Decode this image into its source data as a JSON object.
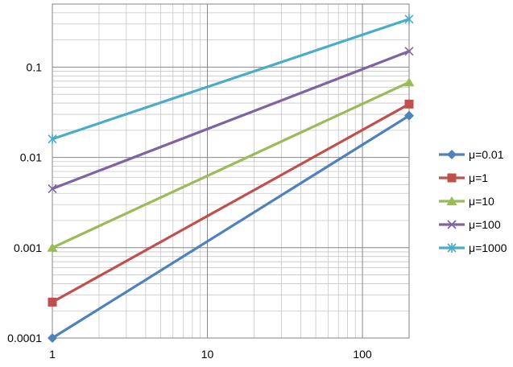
{
  "chart_data": {
    "type": "line",
    "title": "",
    "xlabel": "",
    "ylabel": "",
    "x_scale": "log",
    "y_scale": "log",
    "xlim": [
      1,
      200
    ],
    "ylim": [
      0.0001,
      0.5
    ],
    "grid": true,
    "x_ticks": [
      {
        "value": 1,
        "label": "1"
      },
      {
        "value": 10,
        "label": "10"
      },
      {
        "value": 100,
        "label": "100"
      }
    ],
    "y_ticks": [
      {
        "value": 0.0001,
        "label": "0.0001"
      },
      {
        "value": 0.001,
        "label": "0.001"
      },
      {
        "value": 0.01,
        "label": "0.01"
      },
      {
        "value": 0.1,
        "label": "0.1"
      }
    ],
    "legend_position": "right",
    "series": [
      {
        "name": "μ=0.01",
        "color": "#4F81BD",
        "marker": "diamond",
        "x": [
          1,
          200
        ],
        "y": [
          0.0001,
          0.029
        ]
      },
      {
        "name": "μ=1",
        "color": "#C0504D",
        "marker": "square",
        "x": [
          1,
          200
        ],
        "y": [
          0.00025,
          0.039
        ]
      },
      {
        "name": "μ=10",
        "color": "#9BBB59",
        "marker": "triangle",
        "x": [
          1,
          200
        ],
        "y": [
          0.001,
          0.068
        ]
      },
      {
        "name": "μ=100",
        "color": "#8064A2",
        "marker": "x",
        "x": [
          1,
          200
        ],
        "y": [
          0.0045,
          0.15
        ]
      },
      {
        "name": "μ=1000",
        "color": "#4BACC6",
        "marker": "star",
        "x": [
          1,
          200
        ],
        "y": [
          0.016,
          0.34
        ]
      }
    ]
  }
}
